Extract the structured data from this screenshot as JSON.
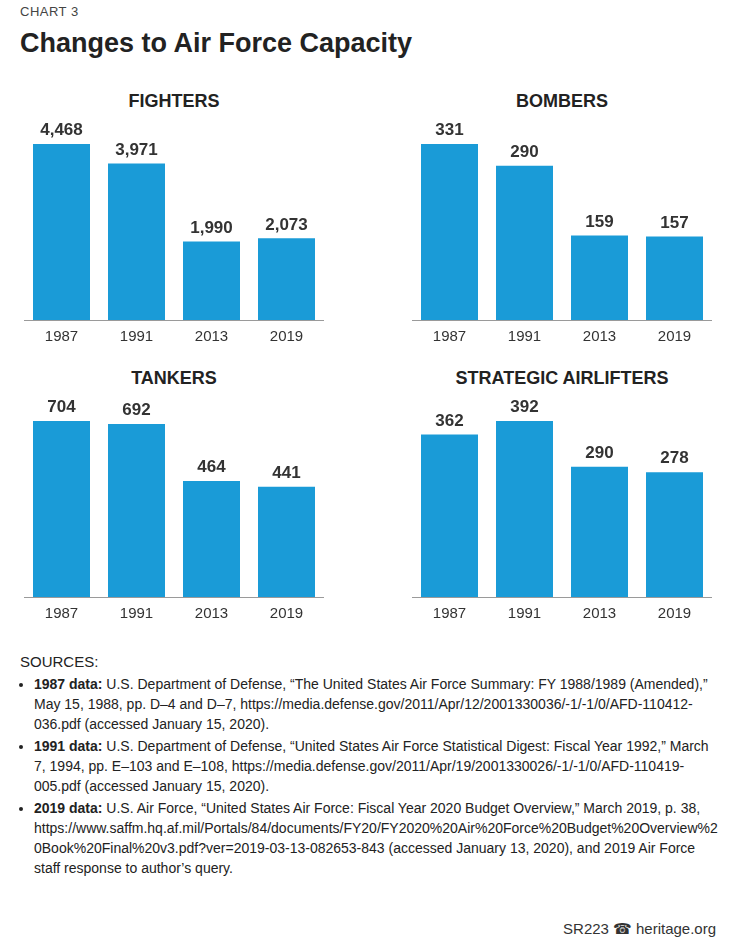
{
  "header": {
    "label": "CHART 3",
    "title": "Changes to Air Force Capacity"
  },
  "chart_data": [
    {
      "type": "bar",
      "title": "FIGHTERS",
      "categories": [
        "1987",
        "1991",
        "2013",
        "2019"
      ],
      "values": [
        4468,
        3971,
        1990,
        2073
      ],
      "value_labels": [
        "4,468",
        "3,971",
        "1,990",
        "2,073"
      ],
      "color": "#1a9bd7",
      "ylim": [
        0,
        4468
      ],
      "grid": false,
      "data_labels": true,
      "tick_labels": "x"
    },
    {
      "type": "bar",
      "title": "BOMBERS",
      "categories": [
        "1987",
        "1991",
        "2013",
        "2019"
      ],
      "values": [
        331,
        290,
        159,
        157
      ],
      "color": "#1a9bd7",
      "ylim": [
        0,
        331
      ],
      "grid": false,
      "data_labels": true,
      "tick_labels": "x"
    },
    {
      "type": "bar",
      "title": "TANKERS",
      "categories": [
        "1987",
        "1991",
        "2013",
        "2019"
      ],
      "values": [
        704,
        692,
        464,
        441
      ],
      "color": "#1a9bd7",
      "ylim": [
        0,
        704
      ],
      "grid": false,
      "data_labels": true,
      "tick_labels": "x"
    },
    {
      "type": "bar",
      "title": "STRATEGIC AIRLIFTERS",
      "categories": [
        "1987",
        "1991",
        "2013",
        "2019"
      ],
      "values": [
        362,
        392,
        290,
        278
      ],
      "color": "#1a9bd7",
      "ylim": [
        0,
        392
      ],
      "grid": false,
      "data_labels": true,
      "tick_labels": "x"
    }
  ],
  "sources": {
    "heading": "SOURCES:",
    "items": [
      {
        "label": "1987 data:",
        "text": "U.S. Department of Defense, “The United States Air Force Summary: FY 1988/1989 (Amended),” May 15, 1988, pp. D–4 and D–7, https://media.defense.gov/2011/Apr/12/2001330036/-1/-1/0/AFD-110412-036.pdf (accessed January 15, 2020)."
      },
      {
        "label": "1991 data:",
        "text": "U.S. Department of Defense, “United States Air Force Statistical Digest: Fiscal Year 1992,” March 7, 1994, pp. E–103 and E–108, https://media.defense.gov/2011/Apr/19/2001330026/-1/-1/0/AFD-110419-005.pdf (accessed January 15, 2020)."
      },
      {
        "label": "2019 data:",
        "text": "U.S. Air Force, “United States Air Force: Fiscal Year 2020 Budget Overview,” March 2019, p. 38, https://www.saffm.hq.af.mil/Portals/84/documents/FY20/FY2020%20Air%20Force%20Budget%20Overview%20Book%20Final%20v3.pdf?ver=2019-03-13-082653-843 (accessed January 13, 2020), and 2019 Air Force staff response to author’s query."
      }
    ]
  },
  "footer": "SR223 ☎ heritage.org"
}
